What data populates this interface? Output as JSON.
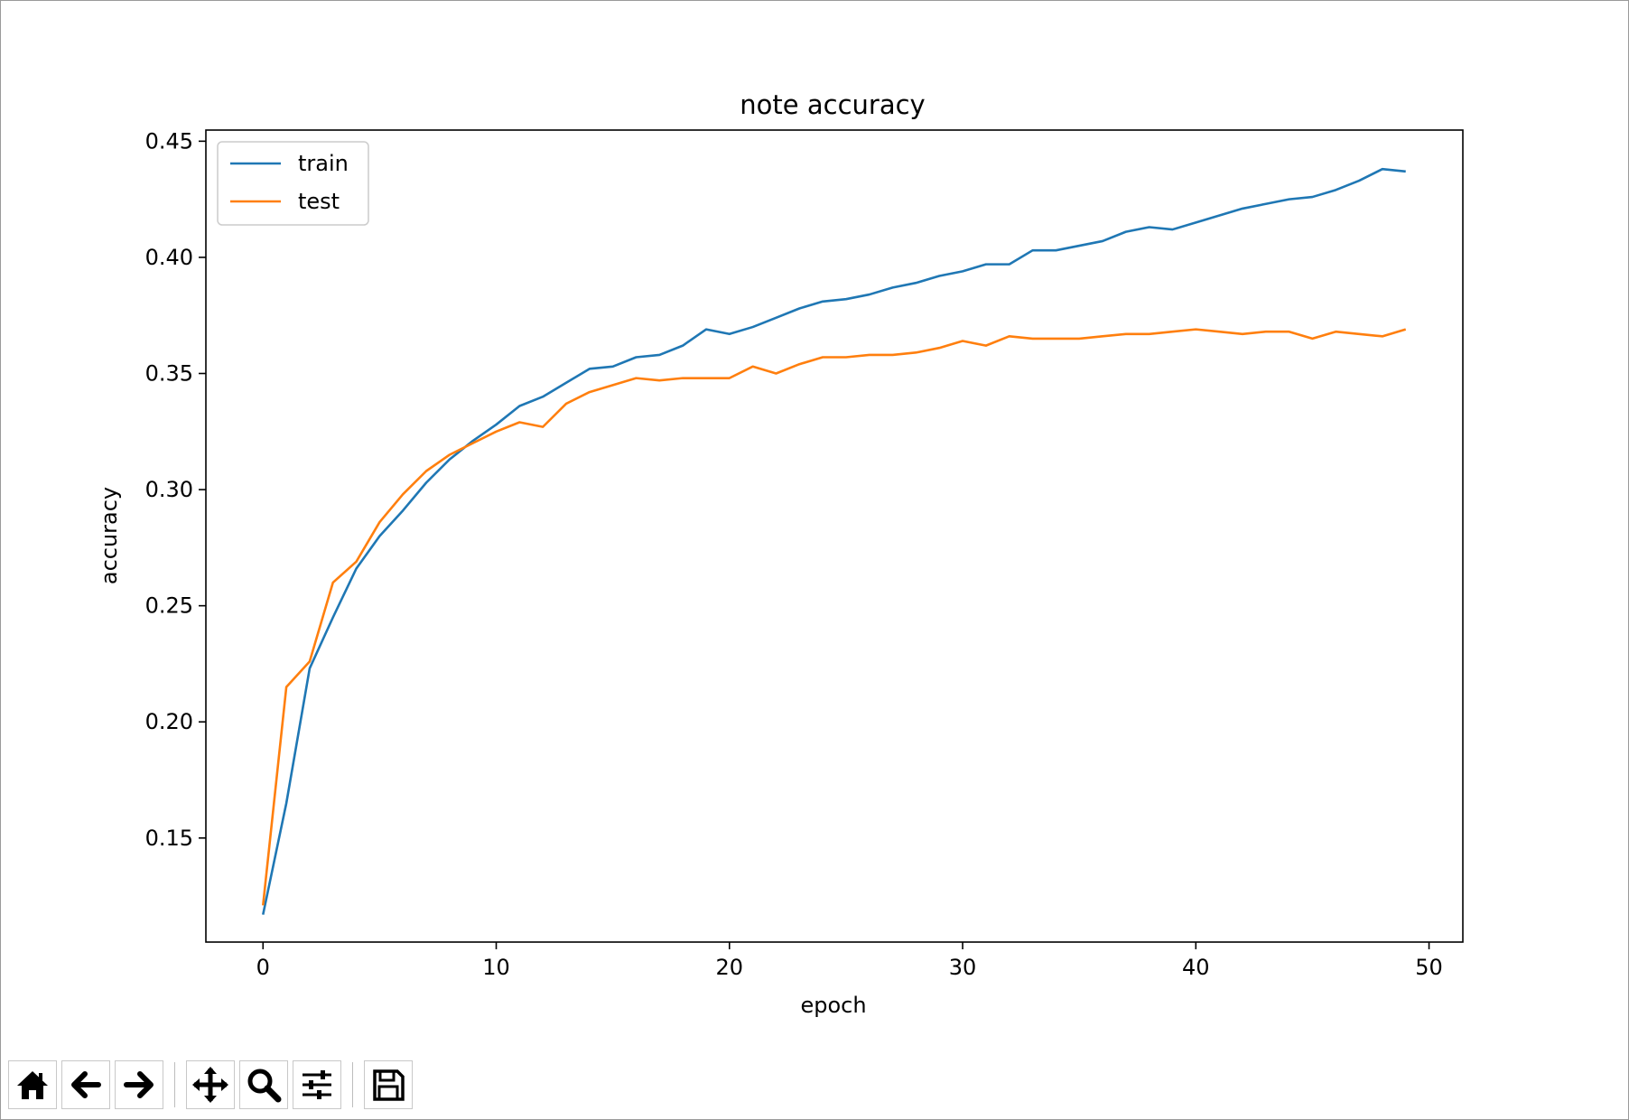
{
  "chart_data": {
    "type": "line",
    "title": "note accuracy",
    "xlabel": "epoch",
    "ylabel": "accuracy",
    "xlim": [
      -2.45,
      51.45
    ],
    "ylim": [
      0.1052,
      0.4548
    ],
    "xticks": [
      0,
      10,
      20,
      30,
      40,
      50
    ],
    "yticks": [
      0.15,
      0.2,
      0.25,
      0.3,
      0.35,
      0.4,
      0.45
    ],
    "xtick_labels": [
      "0",
      "10",
      "20",
      "30",
      "40",
      "50"
    ],
    "ytick_labels": [
      "0.15",
      "0.20",
      "0.25",
      "0.30",
      "0.35",
      "0.40",
      "0.45"
    ],
    "grid": false,
    "legend": "upper-left",
    "x": [
      0,
      1,
      2,
      3,
      4,
      5,
      6,
      7,
      8,
      9,
      10,
      11,
      12,
      13,
      14,
      15,
      16,
      17,
      18,
      19,
      20,
      21,
      22,
      23,
      24,
      25,
      26,
      27,
      28,
      29,
      30,
      31,
      32,
      33,
      34,
      35,
      36,
      37,
      38,
      39,
      40,
      41,
      42,
      43,
      44,
      45,
      46,
      47,
      48,
      49
    ],
    "series": [
      {
        "name": "train",
        "color": "#1f77b4",
        "values": [
          0.117,
          0.165,
          0.223,
          0.245,
          0.266,
          0.28,
          0.291,
          0.303,
          0.313,
          0.321,
          0.328,
          0.336,
          0.34,
          0.346,
          0.352,
          0.353,
          0.357,
          0.358,
          0.362,
          0.369,
          0.367,
          0.37,
          0.374,
          0.378,
          0.381,
          0.382,
          0.384,
          0.387,
          0.389,
          0.392,
          0.394,
          0.397,
          0.397,
          0.403,
          0.403,
          0.405,
          0.407,
          0.411,
          0.413,
          0.412,
          0.415,
          0.418,
          0.421,
          0.423,
          0.425,
          0.426,
          0.429,
          0.433,
          0.438,
          0.437
        ]
      },
      {
        "name": "test",
        "color": "#ff7f0e",
        "values": [
          0.121,
          0.215,
          0.226,
          0.26,
          0.269,
          0.286,
          0.298,
          0.308,
          0.315,
          0.32,
          0.325,
          0.329,
          0.327,
          0.337,
          0.342,
          0.345,
          0.348,
          0.347,
          0.348,
          0.348,
          0.348,
          0.353,
          0.35,
          0.354,
          0.357,
          0.357,
          0.358,
          0.358,
          0.359,
          0.361,
          0.364,
          0.362,
          0.366,
          0.365,
          0.365,
          0.365,
          0.366,
          0.367,
          0.367,
          0.368,
          0.369,
          0.368,
          0.367,
          0.368,
          0.368,
          0.365,
          0.368,
          0.367,
          0.366,
          0.369
        ]
      }
    ]
  },
  "toolbar": {
    "buttons": [
      {
        "name": "home-icon"
      },
      {
        "name": "back-arrow-icon"
      },
      {
        "name": "forward-arrow-icon"
      },
      {
        "name": "pan-icon"
      },
      {
        "name": "zoom-icon"
      },
      {
        "name": "configure-subplots-icon"
      },
      {
        "name": "save-icon"
      }
    ]
  }
}
